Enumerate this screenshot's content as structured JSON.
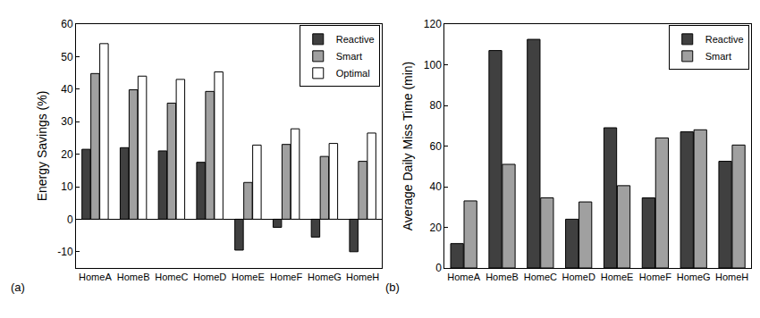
{
  "chart_data": [
    {
      "type": "bar",
      "y_label": "Energy Savings (%)",
      "annotations": [
        "(a)"
      ],
      "categories": [
        "HomeA",
        "HomeB",
        "HomeC",
        "HomeD",
        "HomeE",
        "HomeF",
        "HomeG",
        "HomeH"
      ],
      "series": [
        {
          "name": "Reactive",
          "color": "#404040",
          "values": [
            21.5,
            22,
            21,
            17.5,
            -9.5,
            -2.5,
            -5.5,
            -10
          ]
        },
        {
          "name": "Smart",
          "color": "#a0a0a0",
          "values": [
            44.8,
            39.8,
            35.7,
            39.3,
            11.3,
            23,
            19.3,
            17.8
          ]
        },
        {
          "name": "Optimal",
          "color": "#ffffff",
          "values": [
            54,
            44,
            43,
            45.3,
            22.8,
            27.8,
            23.3,
            26.5
          ]
        }
      ],
      "ylim": [
        -15,
        60
      ],
      "yticks": [
        -10,
        0,
        10,
        20,
        30,
        40,
        50,
        60
      ],
      "legend": "upper right",
      "grid": false
    },
    {
      "type": "bar",
      "y_label": "Average Daily Miss Time (min)",
      "annotations": [
        "(b)"
      ],
      "categories": [
        "HomeA",
        "HomeB",
        "HomeC",
        "HomeD",
        "HomeE",
        "HomeF",
        "HomeG",
        "HomeH"
      ],
      "series": [
        {
          "name": "Reactive",
          "color": "#404040",
          "values": [
            12,
            107,
            112.5,
            24,
            69,
            34.5,
            67,
            52.5
          ]
        },
        {
          "name": "Smart",
          "color": "#a0a0a0",
          "values": [
            33,
            51,
            34.5,
            32.5,
            40.5,
            64,
            68,
            60.5
          ]
        }
      ],
      "ylim": [
        0,
        120
      ],
      "yticks": [
        0,
        20,
        40,
        60,
        80,
        100,
        120
      ],
      "legend": "upper right",
      "grid": false
    }
  ]
}
